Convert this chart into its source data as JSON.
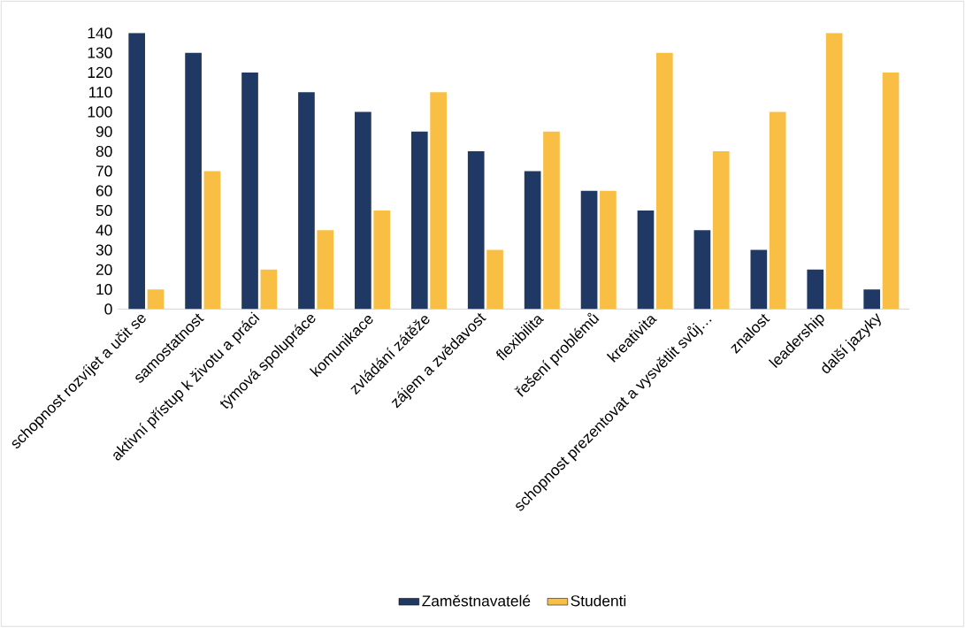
{
  "chart_data": {
    "type": "bar",
    "categories": [
      "schopnost rozvíjet a učit se",
      "samostatnost",
      "aktivní přístup k životu a práci",
      "týmová spolupráce",
      "komunikace",
      "zvládání zátěže",
      "zájem a zvědavost",
      "flexibilita",
      "řešení problémů",
      "kreativita",
      "schopnost prezentovat a vysvětlit svůj…",
      "znalost",
      "leadership",
      "další jazyky"
    ],
    "series": [
      {
        "name": "Zaměstnavatelé",
        "color": "#1f3864",
        "values": [
          140,
          130,
          120,
          110,
          100,
          90,
          80,
          70,
          60,
          50,
          40,
          30,
          20,
          10
        ]
      },
      {
        "name": "Studenti",
        "color": "#f9bf45",
        "values": [
          10,
          70,
          20,
          40,
          50,
          110,
          30,
          90,
          60,
          130,
          80,
          100,
          140,
          120
        ]
      }
    ],
    "ylim": [
      0,
      140
    ],
    "yticks": [
      0,
      10,
      20,
      30,
      40,
      50,
      60,
      70,
      80,
      90,
      100,
      110,
      120,
      130,
      140
    ],
    "grid": false,
    "legend": "bottom"
  }
}
